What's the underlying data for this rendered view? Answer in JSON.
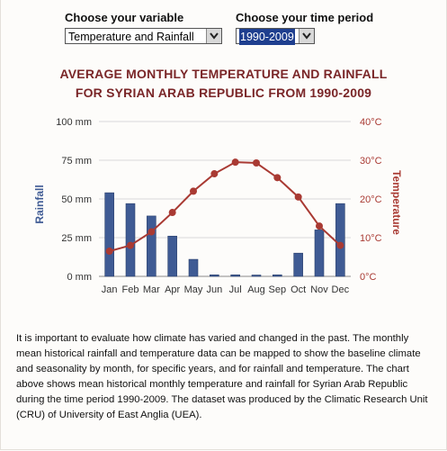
{
  "controls": {
    "variable_label": "Choose your variable",
    "variable_value": "Temperature and Rainfall",
    "period_label": "Choose your time period",
    "period_value": "1990-2009"
  },
  "chart_title_line1": "AVERAGE MONTHLY TEMPERATURE AND RAINFALL",
  "chart_title_line2": "FOR SYRIAN ARAB REPUBLIC FROM 1990-2009",
  "colors": {
    "bar": "#3f5b94",
    "temperature_line": "#a93a33",
    "title": "#7a2628"
  },
  "chart_data": {
    "type": "bar",
    "categories": [
      "Jan",
      "Feb",
      "Mar",
      "Apr",
      "May",
      "Jun",
      "Jul",
      "Aug",
      "Sep",
      "Oct",
      "Nov",
      "Dec"
    ],
    "series": [
      {
        "name": "Rainfall",
        "type": "bar",
        "axis": "left",
        "values": [
          54,
          47,
          39,
          26,
          11,
          1,
          1,
          0,
          1,
          15,
          30,
          47
        ]
      },
      {
        "name": "Temperature",
        "type": "line",
        "axis": "right",
        "values": [
          6.5,
          8,
          11.5,
          16.5,
          22,
          26.5,
          29.5,
          29.3,
          25.5,
          20.5,
          13,
          8
        ]
      }
    ],
    "ylabel_left": "Rainfall",
    "ylabel_right": "Temperature",
    "ylim_left": [
      0,
      100
    ],
    "ylim_right": [
      0,
      40
    ],
    "yticks_left": [
      "0 mm",
      "25 mm",
      "50 mm",
      "75 mm",
      "100 mm"
    ],
    "yticks_right": [
      "0°C",
      "10°C",
      "20°C",
      "30°C",
      "40°C"
    ],
    "grid": true
  },
  "description": "It is important to evaluate how climate has varied and changed in the past. The monthly mean historical rainfall and temperature data can be mapped to show the baseline climate and seasonality by month, for specific years, and for rainfall and temperature. The chart above shows mean historical monthly temperature and rainfall for Syrian Arab Republic during the time period 1990-2009. The dataset was produced by the Climatic Research Unit (CRU) of University of East Anglia (UEA)."
}
